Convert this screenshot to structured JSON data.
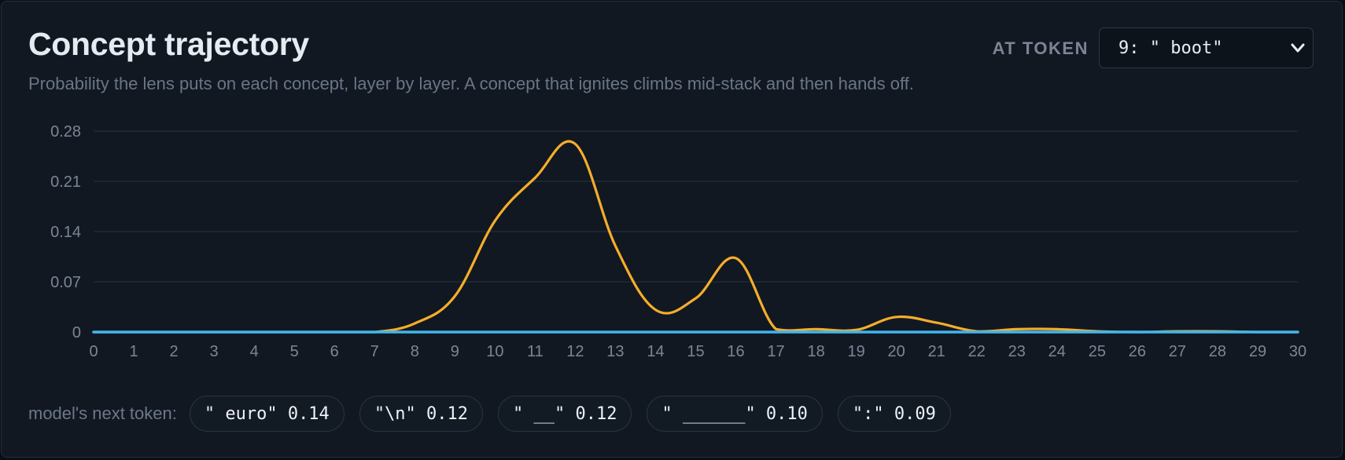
{
  "header": {
    "title": "Concept trajectory",
    "subtitle": "Probability the lens puts on each concept, layer by layer. A concept that ignites climbs mid-stack and then hands off.",
    "at_token_label": "AT TOKEN",
    "token_select_value": "9: \" boot\""
  },
  "chart_data": {
    "type": "line",
    "x": [
      0,
      1,
      2,
      3,
      4,
      5,
      6,
      7,
      8,
      9,
      10,
      11,
      12,
      13,
      14,
      15,
      16,
      17,
      18,
      19,
      20,
      21,
      22,
      23,
      24,
      25,
      26,
      27,
      28,
      29,
      30
    ],
    "xticks": [
      "0",
      "1",
      "2",
      "3",
      "4",
      "5",
      "6",
      "7",
      "8",
      "9",
      "10",
      "11",
      "12",
      "13",
      "14",
      "15",
      "16",
      "17",
      "18",
      "19",
      "20",
      "21",
      "22",
      "23",
      "24",
      "25",
      "26",
      "27",
      "28",
      "29",
      "30"
    ],
    "yticks": [
      "0",
      "0.07",
      "0.14",
      "0.21",
      "0.28"
    ],
    "ytick_values": [
      0,
      0.07,
      0.14,
      0.21,
      0.28
    ],
    "xlim": [
      0,
      30
    ],
    "ylim": [
      0,
      0.28
    ],
    "grid": "horizontal",
    "series": [
      {
        "color": "#f5ad2a",
        "values": [
          0,
          0,
          0,
          0,
          0,
          0,
          0,
          0,
          0.012,
          0.05,
          0.155,
          0.215,
          0.262,
          0.12,
          0.031,
          0.047,
          0.103,
          0.004,
          0.004,
          0.003,
          0.021,
          0.013,
          0.001,
          0.004,
          0.004,
          0.001,
          0,
          0.001,
          0.001,
          0,
          0
        ]
      },
      {
        "color": "#3fb6ee",
        "values": [
          0,
          0,
          0,
          0,
          0,
          0,
          0,
          0,
          0,
          0,
          0,
          0,
          0,
          0,
          0,
          0,
          0,
          0,
          0,
          0,
          0,
          0,
          0,
          0,
          0,
          0,
          0,
          0,
          0,
          0,
          0
        ]
      }
    ]
  },
  "footer": {
    "label": "model's next token:",
    "chips": [
      "\" euro\" 0.14",
      "\"\\n\" 0.12",
      "\" __\" 0.12",
      "\" ______\" 0.10",
      "\":\" 0.09"
    ]
  }
}
